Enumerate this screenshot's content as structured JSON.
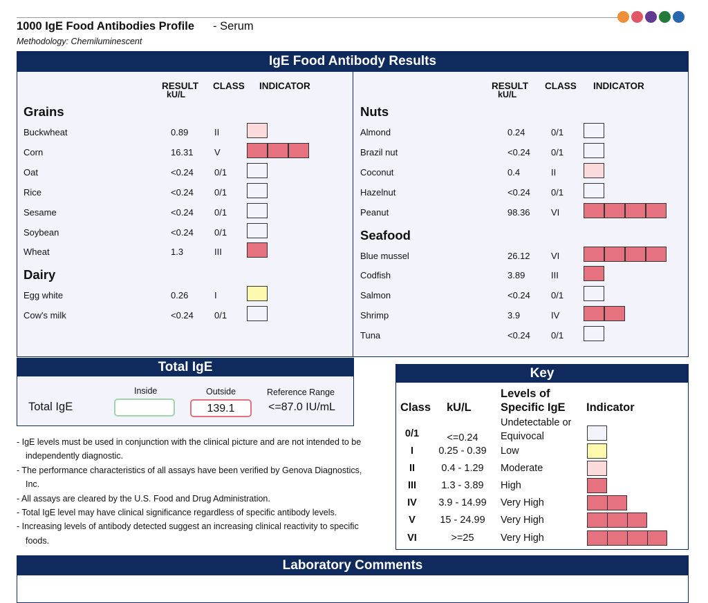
{
  "header": {
    "title": "1000 IgE Food Antibodies Profile",
    "subtitle": "- Serum",
    "methodology": "Methodology: Chemiluminescent",
    "dot_colors": [
      "#ef8f3a",
      "#e05765",
      "#623a93",
      "#237a3a",
      "#2867ad"
    ]
  },
  "results": {
    "banner": "IgE Food Antibody Results",
    "col_result": "RESULT",
    "col_unit": "kU/L",
    "col_class": "CLASS",
    "col_indicator": "INDICATOR",
    "left_groups": [
      {
        "name": "Grains",
        "items": [
          {
            "name": "Buckwheat",
            "value": "0.89",
            "class": "II",
            "level": 2
          },
          {
            "name": "Corn",
            "value": "16.31",
            "class": "V",
            "level": 5
          },
          {
            "name": "Oat",
            "value": "<0.24",
            "class": "0/1",
            "level": 0
          },
          {
            "name": "Rice",
            "value": "<0.24",
            "class": "0/1",
            "level": 0
          },
          {
            "name": "Sesame",
            "value": "<0.24",
            "class": "0/1",
            "level": 0
          },
          {
            "name": "Soybean",
            "value": "<0.24",
            "class": "0/1",
            "level": 0
          },
          {
            "name": "Wheat",
            "value": "1.3",
            "class": "III",
            "level": 3
          }
        ]
      },
      {
        "name": "Dairy",
        "items": [
          {
            "name": "Egg white",
            "value": "0.26",
            "class": "I",
            "level": 1
          },
          {
            "name": "Cow's milk",
            "value": "<0.24",
            "class": "0/1",
            "level": 0
          }
        ]
      }
    ],
    "right_groups": [
      {
        "name": "Nuts",
        "items": [
          {
            "name": "Almond",
            "value": "0.24",
            "class": "0/1",
            "level": 0
          },
          {
            "name": "Brazil nut",
            "value": "<0.24",
            "class": "0/1",
            "level": 0
          },
          {
            "name": "Coconut",
            "value": "0.4",
            "class": "II",
            "level": 2
          },
          {
            "name": "Hazelnut",
            "value": "<0.24",
            "class": "0/1",
            "level": 0
          },
          {
            "name": "Peanut",
            "value": "98.36",
            "class": "VI",
            "level": 6
          }
        ]
      },
      {
        "name": "Seafood",
        "items": [
          {
            "name": "Blue mussel",
            "value": "26.12",
            "class": "VI",
            "level": 6
          },
          {
            "name": "Codfish",
            "value": "3.89",
            "class": "III",
            "level": 3
          },
          {
            "name": "Salmon",
            "value": "<0.24",
            "class": "0/1",
            "level": 0
          },
          {
            "name": "Shrimp",
            "value": "3.9",
            "class": "IV",
            "level": 4
          },
          {
            "name": "Tuna",
            "value": "<0.24",
            "class": "0/1",
            "level": 0
          }
        ]
      }
    ]
  },
  "total_ige": {
    "banner": "Total IgE",
    "label": "Total IgE",
    "inside_label": "Inside",
    "outside_label": "Outside",
    "reference_label": "Reference Range",
    "inside_value": "",
    "outside_value": "139.1",
    "reference_value": "<=87.0 IU/mL",
    "inside_color": "#9fd3a8",
    "outside_color": "#e0717d"
  },
  "notes": [
    "- IgE levels must be used in conjunction with the clinical picture and are not intended to be independently diagnostic.",
    "- The performance characteristics of all assays have been verified by Genova Diagnostics, Inc.",
    "- All assays are cleared by the U.S. Food and Drug Administration.",
    "- Total IgE level may have clinical significance regardless of specific antibody levels.",
    "- Increasing levels of antibody detected suggest an increasing clinical reactivity to specific foods."
  ],
  "key": {
    "banner": "Key",
    "col_class": "Class",
    "col_unit": "kU/L",
    "col_levels": "Levels of Specific IgE",
    "col_indicator": "Indicator",
    "rows": [
      {
        "class": "0/1",
        "range": "<=0.24",
        "level_text": "Undetectable or Equivocal",
        "level": 0
      },
      {
        "class": "I",
        "range": "0.25 - 0.39",
        "level_text": "Low",
        "level": 1
      },
      {
        "class": "II",
        "range": "0.4 - 1.29",
        "level_text": "Moderate",
        "level": 2
      },
      {
        "class": "III",
        "range": "1.3 - 3.89",
        "level_text": "High",
        "level": 3
      },
      {
        "class": "IV",
        "range": "3.9 - 14.99",
        "level_text": "Very High",
        "level": 4
      },
      {
        "class": "V",
        "range": "15 - 24.99",
        "level_text": "Very High",
        "level": 5
      },
      {
        "class": "VI",
        "range": ">=25",
        "level_text": "Very High",
        "level": 6
      }
    ]
  },
  "indicator_colors": {
    "none": "#f3f4fb",
    "low": "#fdfab0",
    "moderate": "#fadada",
    "high": "#e5727e"
  },
  "lab_comments": {
    "banner": "Laboratory Comments"
  }
}
